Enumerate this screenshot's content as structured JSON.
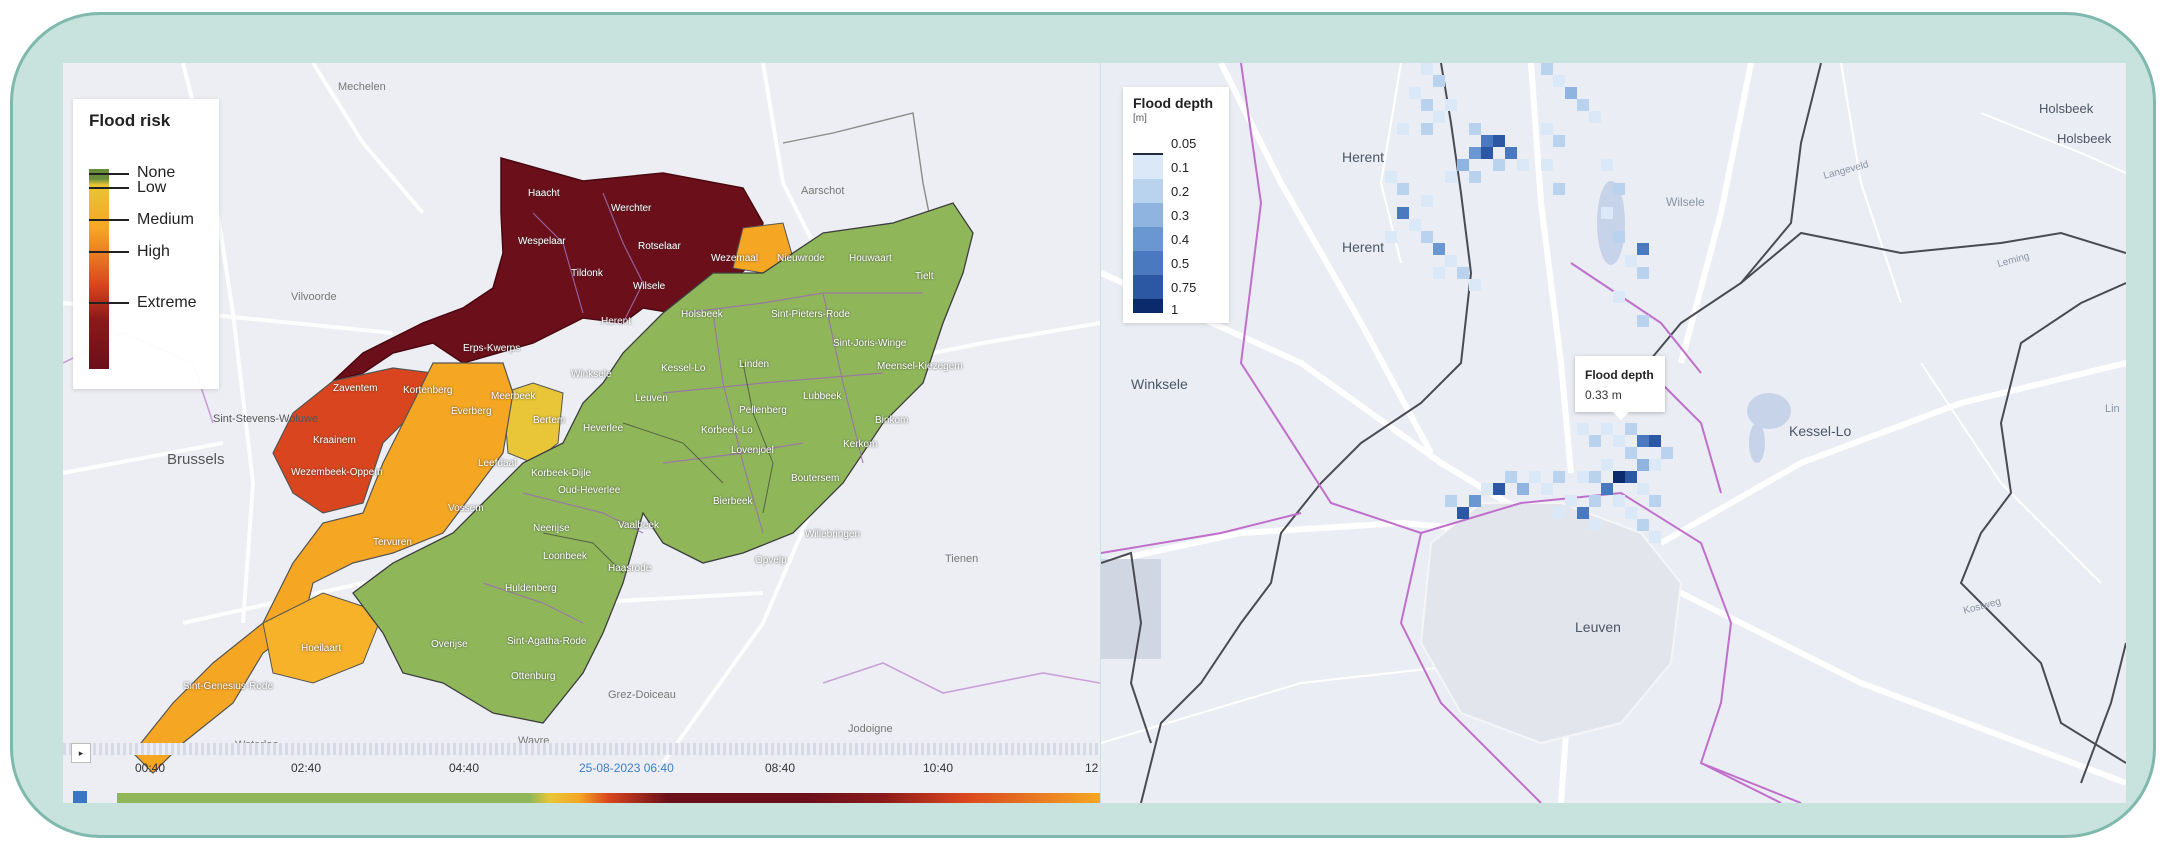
{
  "left_map": {
    "legend": {
      "title": "Flood risk",
      "levels": [
        "None",
        "Low",
        "Medium",
        "High",
        "Extreme"
      ],
      "colors": {
        "none": "#6a8d3c",
        "low": "#e8c637",
        "medium": "#f5a623",
        "high": "#d9451e",
        "extreme": "#6b0f1a"
      }
    },
    "place_labels": {
      "haacht": "Haacht",
      "werchter": "Werchter",
      "wespelaar": "Wespelaar",
      "rotselaar": "Rotselaar",
      "wezemaal": "Wezemaal",
      "nieuwrode": "Nieuwrode",
      "houwaart": "Houwaart",
      "tielt": "Tielt",
      "tildonk": "Tildonk",
      "wilsele": "Wilsele",
      "herent": "Herent",
      "holsbeek": "Holsbeek",
      "sint_pieters_rode": "Sint-Pieters-Rode",
      "sint_joris_winge": "Sint-Joris-Winge",
      "meensel_kiezegem": "Meensel-Kiezegem",
      "erps_kwerps": "Erps-Kwerps",
      "winksele": "Winksele",
      "kessel_lo": "Kessel-Lo",
      "linden": "Linden",
      "lubbeek": "Lubbeek",
      "binkom": "Binkom",
      "zaventem": "Zaventem",
      "kortenberg": "Kortenberg",
      "meerbeek": "Meerbeek",
      "everberg": "Everberg",
      "bertem": "Bertem",
      "leuven": "Leuven",
      "heverlee": "Heverlee",
      "korbeek_lo": "Korbeek-Lo",
      "pellenberg": "Pellenberg",
      "lovenjoel": "Lovenjoel",
      "kerkom": "Kerkom",
      "sint_stevens_woluwe": "Sint-Stevens-Woluwe",
      "kraainem": "Kraainem",
      "brussels": "Brussels",
      "wezembeek_oppem": "Wezembeek-Oppem",
      "leefdaal": "Leefdaal",
      "korbeek_dijle": "Korbeek-Dijle",
      "oud_heverlee": "Oud-Heverlee",
      "boutersem": "Boutersem",
      "vossem": "Vossem",
      "bierbeek": "Bierbeek",
      "tervuren": "Tervuren",
      "neerijse": "Neerijse",
      "vaalbeek": "Vaalbeek",
      "willebringen": "Willebringen",
      "loonbeek": "Loonbeek",
      "haasrode": "Haasrode",
      "opvelp": "Opvelp",
      "huldenberg": "Huldenberg",
      "hoeilaart": "Hoeilaart",
      "overijse": "Overijse",
      "sint_agatha_rode": "Sint-Agatha-Rode",
      "sint_genesius_rode": "Sint-Genesius-Rode",
      "ottenburg": "Ottenburg",
      "mechelen": "Mechelen",
      "aarschot": "Aarschot",
      "vilvoorde": "Vilvoorde",
      "tienen": "Tienen",
      "grez_doiceau": "Grez-Doiceau",
      "jodoigne": "Jodoigne",
      "wavre": "Wavre",
      "waterloo": "Waterloo"
    },
    "timeline": {
      "play_icon": "play-icon",
      "labels": [
        "00:40",
        "02:40",
        "04:40",
        "25-08-2023 06:40",
        "08:40",
        "10:40",
        "12"
      ]
    }
  },
  "right_map": {
    "legend": {
      "title": "Flood depth",
      "unit": "[m]",
      "levels": [
        "0.05",
        "0.1",
        "0.2",
        "0.3",
        "0.4",
        "0.5",
        "0.75",
        "1"
      ],
      "colors": [
        "#1f2b3a",
        "#dbe8f7",
        "#b9d2ee",
        "#8fb4e0",
        "#6a96d2",
        "#4a79c0",
        "#2c57a3",
        "#0b2a6b"
      ]
    },
    "tooltip": {
      "title": "Flood depth",
      "value": "0.33 m"
    },
    "place_labels": {
      "herent_top": "Herent",
      "herent": "Herent",
      "holsbeek_a": "Holsbeek",
      "holsbeek_b": "Holsbeek",
      "wilsele": "Wilsele",
      "winksele": "Winksele",
      "kessel_lo": "Kessel-Lo",
      "leuven": "Leuven",
      "langeveld": "Langeveld",
      "leming": "Leming",
      "kostweg": "Kostweg",
      "lin": "Lin"
    }
  }
}
